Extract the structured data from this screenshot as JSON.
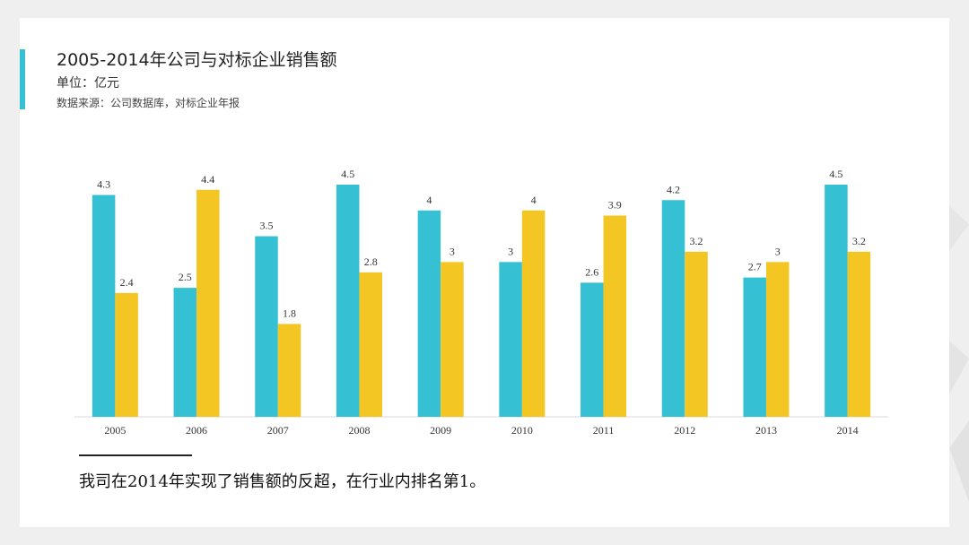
{
  "chart_data": {
    "type": "bar",
    "title": "2005-2014年公司与对标企业销售额",
    "subtitle": "单位：亿元",
    "source": "数据来源：公司数据库，对标企业年报",
    "annotation": "我司在2014年实现了销售额的反超，在行业内排名第1。",
    "categories": [
      "2005",
      "2006",
      "2007",
      "2008",
      "2009",
      "2010",
      "2011",
      "2012",
      "2013",
      "2014"
    ],
    "series": [
      {
        "color": "#36c0d3",
        "values": [
          4.3,
          2.5,
          3.5,
          4.5,
          4,
          3,
          2.6,
          4.2,
          2.7,
          4.5
        ]
      },
      {
        "color": "#f4c623",
        "values": [
          2.4,
          4.4,
          1.8,
          2.8,
          3,
          4,
          3.9,
          3.2,
          3,
          3.2
        ]
      }
    ],
    "ylim": [
      0,
      4.5
    ]
  }
}
